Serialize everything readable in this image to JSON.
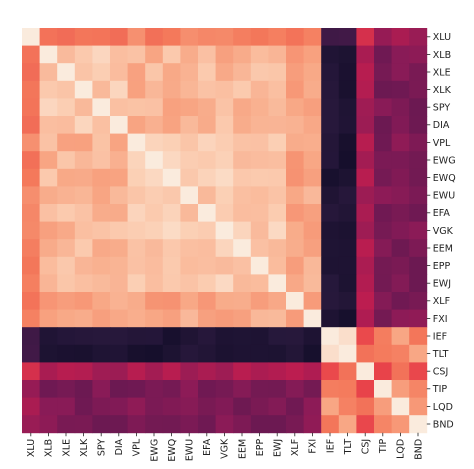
{
  "chart_data": {
    "type": "heatmap",
    "title": "",
    "xlabel": "",
    "ylabel": "",
    "labels": [
      "XLU",
      "XLB",
      "XLE",
      "XLK",
      "SPY",
      "DIA",
      "VPL",
      "EWG",
      "EWQ",
      "EWU",
      "EFA",
      "VGK",
      "EEM",
      "EPP",
      "EWJ",
      "XLF",
      "FXI",
      "IEF",
      "TLT",
      "CSJ",
      "TIP",
      "LQD",
      "BND"
    ],
    "groups": {
      "equities": [
        "XLU",
        "XLB",
        "XLE",
        "XLK",
        "SPY",
        "DIA",
        "VPL",
        "EWG",
        "EWQ",
        "EWU",
        "EFA",
        "VGK",
        "EEM",
        "EPP",
        "EWJ",
        "XLF",
        "FXI"
      ],
      "bonds": [
        "IEF",
        "TLT",
        "CSJ",
        "TIP",
        "LQD",
        "BND"
      ]
    },
    "value_range": [
      -0.6,
      1.0
    ],
    "colormap": "rocket",
    "colormap_stops": [
      "#03051a",
      "#2b1a3f",
      "#59184f",
      "#8a1b57",
      "#c01d4f",
      "#e8424a",
      "#f4795b",
      "#f8a684",
      "#fbcfb4",
      "#faebdd"
    ],
    "diagonal": 1.0,
    "correlations_note": "values estimated from cell colors"
  }
}
